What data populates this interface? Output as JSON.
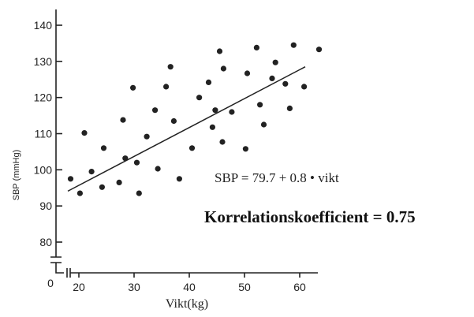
{
  "chart_data": {
    "type": "scatter",
    "xlabel": "Vikt(kg)",
    "ylabel": "SBP (mmHg)",
    "origin_label": "0",
    "xlim": [
      17,
      65
    ],
    "ylim": [
      75,
      142
    ],
    "xticks": [
      20,
      30,
      40,
      50,
      60
    ],
    "yticks": [
      80,
      90,
      100,
      110,
      120,
      130,
      140
    ],
    "points": [
      [
        18.5,
        97.5
      ],
      [
        20.2,
        93.5
      ],
      [
        21.0,
        110.2
      ],
      [
        22.3,
        99.5
      ],
      [
        24.2,
        95.2
      ],
      [
        24.5,
        106.0
      ],
      [
        27.3,
        96.5
      ],
      [
        28.0,
        113.8
      ],
      [
        28.4,
        103.2
      ],
      [
        29.8,
        122.7
      ],
      [
        30.5,
        102.0
      ],
      [
        30.9,
        93.5
      ],
      [
        32.3,
        109.2
      ],
      [
        33.8,
        116.5
      ],
      [
        34.3,
        100.3
      ],
      [
        35.8,
        123.0
      ],
      [
        36.6,
        128.5
      ],
      [
        37.2,
        113.5
      ],
      [
        38.2,
        97.5
      ],
      [
        40.5,
        106.0
      ],
      [
        41.8,
        120.0
      ],
      [
        43.5,
        124.2
      ],
      [
        44.2,
        111.8
      ],
      [
        44.7,
        116.5
      ],
      [
        45.5,
        132.8
      ],
      [
        46.0,
        107.7
      ],
      [
        46.2,
        128.0
      ],
      [
        47.7,
        116.0
      ],
      [
        50.2,
        105.8
      ],
      [
        50.5,
        126.7
      ],
      [
        52.2,
        133.8
      ],
      [
        52.8,
        118.0
      ],
      [
        53.5,
        112.5
      ],
      [
        55.0,
        125.3
      ],
      [
        55.6,
        129.7
      ],
      [
        57.4,
        123.8
      ],
      [
        58.2,
        117.0
      ],
      [
        58.9,
        134.5
      ],
      [
        60.8,
        123.0
      ],
      [
        63.5,
        133.3
      ]
    ],
    "regression": {
      "intercept": 79.7,
      "slope": 0.8,
      "x_range": [
        18,
        61
      ]
    },
    "equation_text": "SBP = 79.7 + 0.8 • vikt",
    "correlation_text": "Korrelationskoefficient = 0.75",
    "grid": false
  }
}
